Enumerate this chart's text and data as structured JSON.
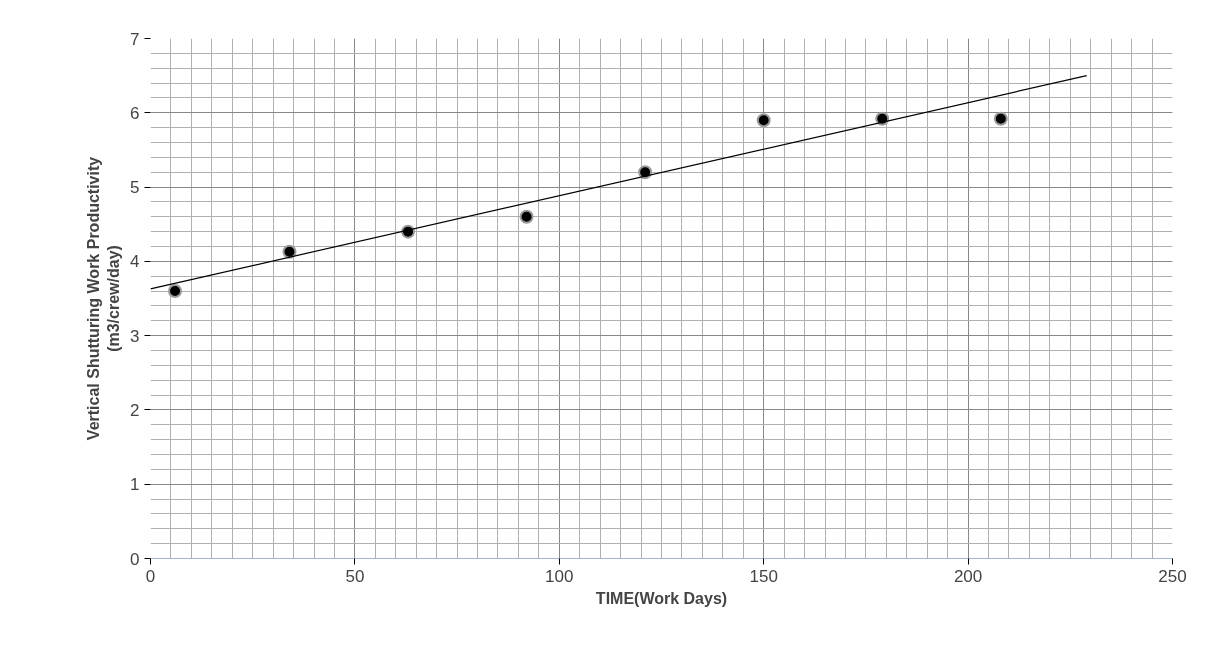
{
  "chart_data": {
    "type": "scatter",
    "xlabel": "TIME(Work Days)",
    "ylabel": "Vertical Shutturing Work Productivity\n(m3/crew/day)",
    "x": [
      6,
      34,
      63,
      92,
      121,
      150,
      179,
      208
    ],
    "series": [
      {
        "color": "#000000",
        "marker": "circle",
        "values": [
          3.6,
          4.13,
          4.4,
          4.6,
          5.2,
          5.9,
          5.92,
          5.92
        ]
      },
      {
        "type": "line",
        "color": "#000000",
        "line_style": "solid",
        "x": [
          0,
          229
        ],
        "values": [
          3.63,
          6.5
        ]
      }
    ],
    "xlim": [
      0,
      250
    ],
    "xticks": [
      0,
      50,
      100,
      150,
      200,
      250
    ],
    "ylim": [
      0,
      7
    ],
    "yticks": [
      0,
      1,
      2,
      3,
      4,
      5,
      6,
      7
    ],
    "grid": true
  }
}
